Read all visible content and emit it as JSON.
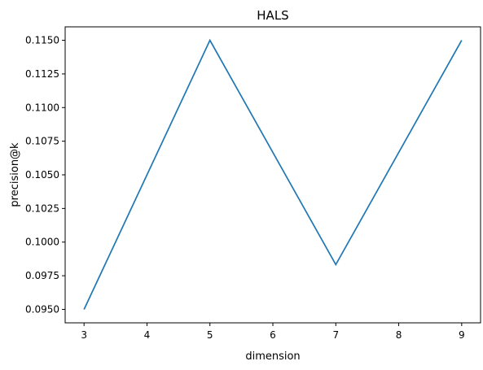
{
  "chart_data": {
    "type": "line",
    "title": "HALS",
    "xlabel": "dimension",
    "ylabel": "precision@k",
    "x": [
      3,
      5,
      7,
      9
    ],
    "series": [
      {
        "name": "precision@k",
        "values": [
          0.095,
          0.115,
          0.09833,
          0.115
        ]
      }
    ],
    "xlim": [
      2.7,
      9.3
    ],
    "ylim": [
      0.094,
      0.116
    ],
    "xticks": [
      "3",
      "4",
      "5",
      "6",
      "7",
      "8",
      "9"
    ],
    "yticks": [
      "0.0950",
      "0.0975",
      "0.1000",
      "0.1025",
      "0.1050",
      "0.1075",
      "0.1100",
      "0.1125",
      "0.1150"
    ],
    "grid": false,
    "line_color": "#1f77b4"
  }
}
